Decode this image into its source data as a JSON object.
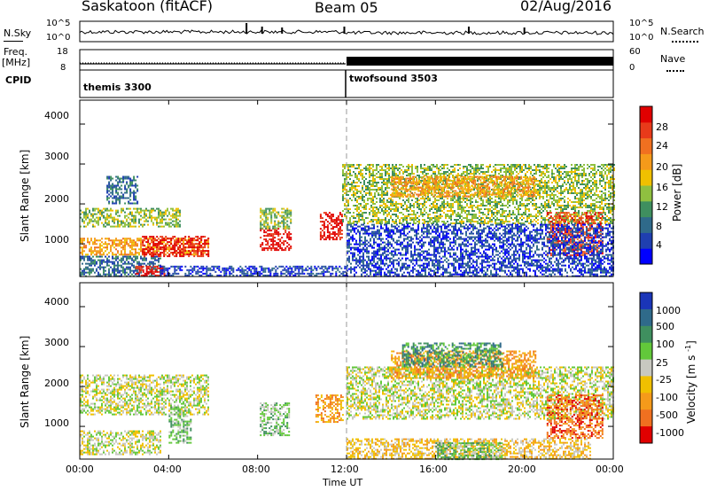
{
  "header": {
    "station": "Saskatoon (fitACF)",
    "beam": "Beam 05",
    "date": "02/Aug/2016"
  },
  "top_panels": {
    "nsky_label": "N.Sky",
    "nsearch_label": "N.Search",
    "freq_label_1": "Freq.",
    "freq_label_2": "[MHz]",
    "nave_label": "Nave",
    "cpid_label": "CPID",
    "nsky_ticks": [
      "10^5",
      "10^0"
    ],
    "nsearch_ticks": [
      "10^5",
      "10^0"
    ],
    "freq_ticks": [
      "18",
      "8"
    ],
    "nave_ticks": [
      "60",
      "0"
    ],
    "cpid_segments": [
      {
        "label": "themis 3300",
        "start_hour": 0,
        "end_hour": 12
      },
      {
        "label": "twofsound 3503",
        "start_hour": 12,
        "end_hour": 24
      }
    ]
  },
  "chart_data": [
    {
      "type": "heatmap",
      "title": "",
      "xlabel": "Time UT",
      "ylabel": "Slant Range [km]",
      "xlim": [
        0,
        24
      ],
      "ylim": [
        180,
        4600
      ],
      "x_ticks": [
        "00:00",
        "04:00",
        "08:00",
        "12:00",
        "16:00",
        "20:00",
        "00:00"
      ],
      "y_ticks": [
        "1000",
        "2000",
        "3000",
        "4000"
      ],
      "y_tick_values": [
        1000,
        2000,
        3000,
        4000
      ],
      "colorbar": {
        "label": "Power [dB]",
        "ticks": [
          "4",
          "8",
          "12",
          "16",
          "20",
          "24",
          "28"
        ],
        "range": [
          0,
          30
        ],
        "colors": [
          "#0000ff",
          "#1f3fb0",
          "#2f6a8a",
          "#3f8f5f",
          "#8fc040",
          "#f0c000",
          "#f59a1a",
          "#f07020",
          "#e83a1a",
          "#e00000"
        ]
      },
      "regions": [
        {
          "t0": 0.0,
          "t1": 3.6,
          "r0": 200,
          "r1": 700,
          "level": 2
        },
        {
          "t0": 0.0,
          "t1": 5.8,
          "r0": 750,
          "r1": 1150,
          "level": 6
        },
        {
          "t0": 2.8,
          "t1": 5.8,
          "r0": 700,
          "r1": 1200,
          "level": 9
        },
        {
          "t0": 0.0,
          "t1": 4.5,
          "r0": 1450,
          "r1": 1900,
          "level": 4
        },
        {
          "t0": 1.2,
          "t1": 2.6,
          "r0": 2000,
          "r1": 2700,
          "level": 2
        },
        {
          "t0": 2.5,
          "t1": 3.8,
          "r0": 200,
          "r1": 450,
          "level": 9
        },
        {
          "t0": 8.1,
          "t1": 9.5,
          "r0": 850,
          "r1": 1400,
          "level": 9
        },
        {
          "t0": 8.1,
          "t1": 9.5,
          "r0": 1400,
          "r1": 1900,
          "level": 4
        },
        {
          "t0": 10.8,
          "t1": 11.8,
          "r0": 1100,
          "r1": 1800,
          "level": 9
        },
        {
          "t0": 11.8,
          "t1": 24.0,
          "r0": 1500,
          "r1": 3000,
          "level": 4
        },
        {
          "t0": 14.0,
          "t1": 20.5,
          "r0": 2200,
          "r1": 2700,
          "level": 6
        },
        {
          "t0": 21.0,
          "t1": 23.5,
          "r0": 700,
          "r1": 1800,
          "level": 8
        },
        {
          "t0": 12.0,
          "t1": 24.0,
          "r0": 200,
          "r1": 1500,
          "level": 1
        },
        {
          "t0": 3.6,
          "t1": 12.0,
          "r0": 200,
          "r1": 450,
          "level": 1
        }
      ]
    },
    {
      "type": "heatmap",
      "title": "",
      "xlabel": "Time UT",
      "ylabel": "Slant Range [km]",
      "xlim": [
        0,
        24
      ],
      "ylim": [
        180,
        4600
      ],
      "x_ticks": [
        "00:00",
        "04:00",
        "08:00",
        "12:00",
        "16:00",
        "20:00",
        "00:00"
      ],
      "y_ticks": [
        "1000",
        "2000",
        "3000",
        "4000"
      ],
      "y_tick_values": [
        1000,
        2000,
        3000,
        4000
      ],
      "colorbar": {
        "label": "Velocity [m s",
        "label_superscript": "-1",
        "label_end": "]",
        "ticks": [
          "1000",
          "500",
          "100",
          "25",
          "-25",
          "-100",
          "-500",
          "-1000"
        ],
        "colors": [
          "#1a35b8",
          "#2f6a8a",
          "#3f8f5f",
          "#62c83a",
          "#c8c8c0",
          "#f0c000",
          "#f59a1a",
          "#f07020",
          "#e00000"
        ]
      },
      "regions": [
        {
          "t0": 0.0,
          "t1": 3.6,
          "r0": 300,
          "r1": 900,
          "level": 4
        },
        {
          "t0": 0.0,
          "t1": 5.8,
          "r0": 1300,
          "r1": 2300,
          "level": 4
        },
        {
          "t0": 4.0,
          "t1": 5.0,
          "r0": 600,
          "r1": 1500,
          "level": 3
        },
        {
          "t0": 8.1,
          "t1": 9.4,
          "r0": 800,
          "r1": 1600,
          "level": 3
        },
        {
          "t0": 10.6,
          "t1": 11.8,
          "r0": 1100,
          "r1": 1800,
          "level": 6
        },
        {
          "t0": 12.0,
          "t1": 24.0,
          "r0": 1200,
          "r1": 2500,
          "level": 4
        },
        {
          "t0": 14.0,
          "t1": 20.5,
          "r0": 2200,
          "r1": 2900,
          "level": 6
        },
        {
          "t0": 14.5,
          "t1": 19.0,
          "r0": 2500,
          "r1": 3100,
          "level": 2
        },
        {
          "t0": 21.0,
          "t1": 23.5,
          "r0": 700,
          "r1": 1800,
          "level": 7
        },
        {
          "t0": 12.0,
          "t1": 23.0,
          "r0": 200,
          "r1": 700,
          "level": 5
        },
        {
          "t0": 16.0,
          "t1": 19.0,
          "r0": 200,
          "r1": 600,
          "level": 3
        }
      ]
    }
  ]
}
